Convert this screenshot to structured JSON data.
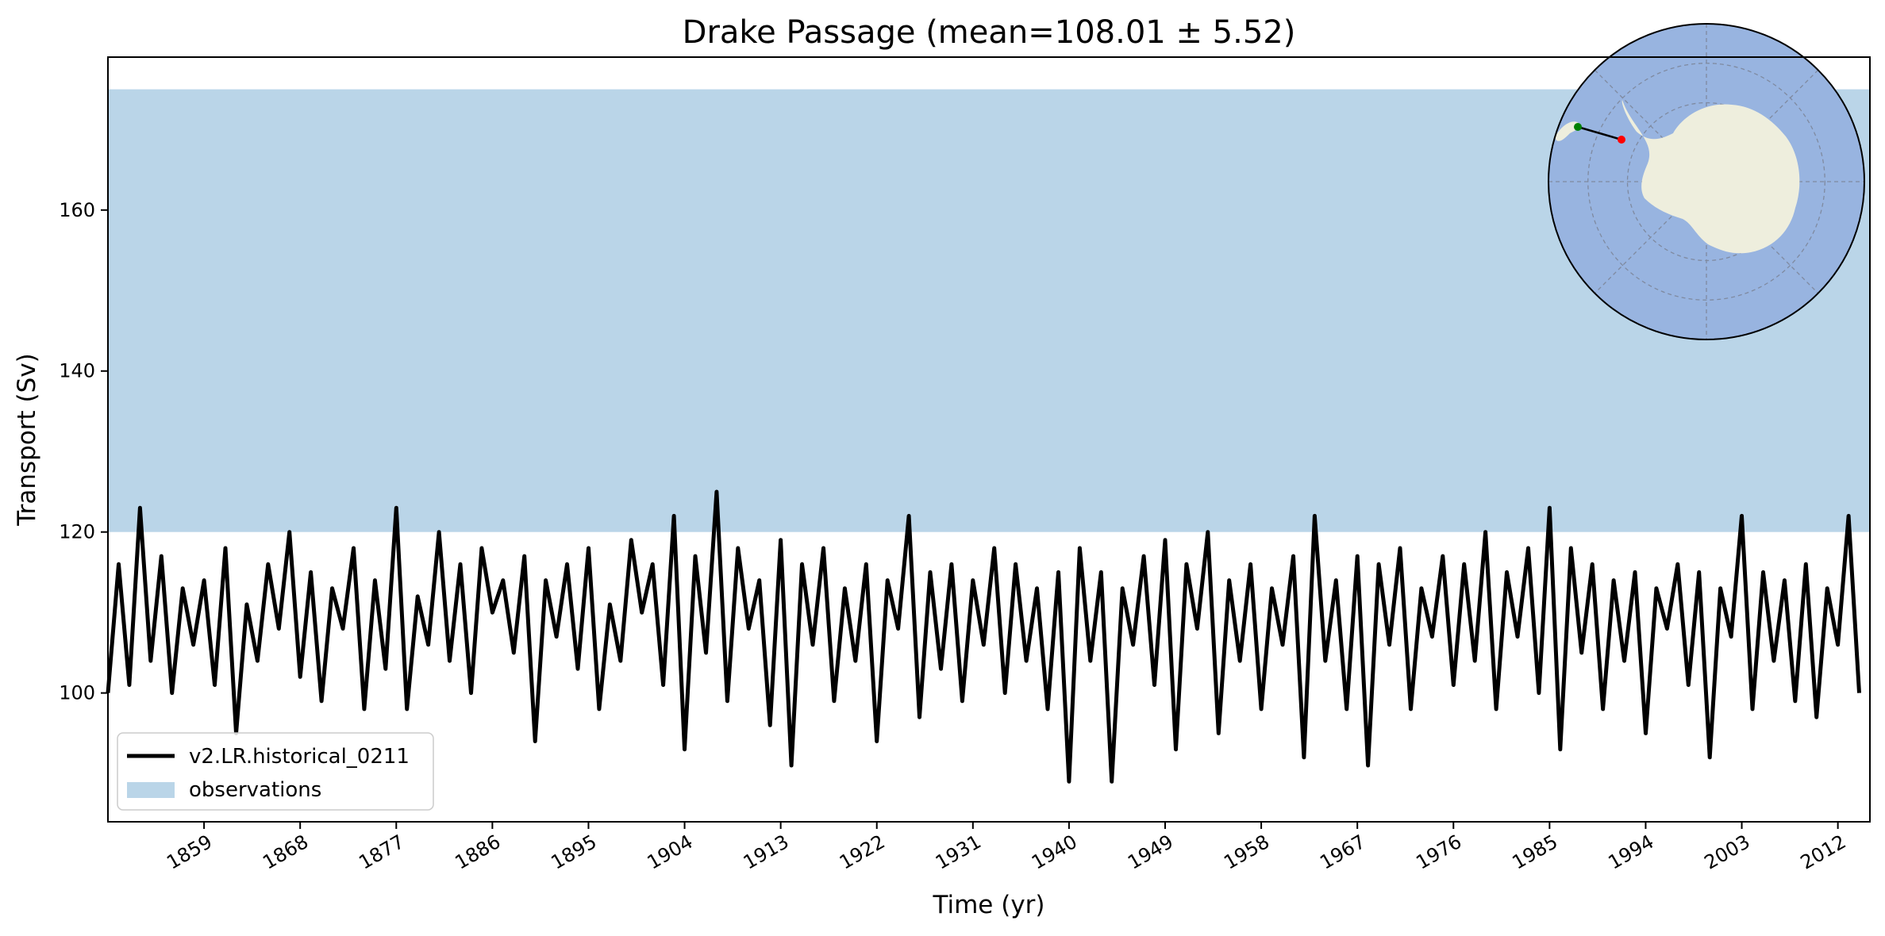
{
  "chart_data": {
    "type": "line",
    "title": "Drake Passage (mean=108.01 ± 5.52)",
    "xlabel": "Time (yr)",
    "ylabel": "Transport (Sv)",
    "xlim": [
      1850,
      2015
    ],
    "ylim": [
      84,
      179
    ],
    "xticks": [
      1859,
      1868,
      1877,
      1886,
      1895,
      1904,
      1913,
      1922,
      1931,
      1940,
      1949,
      1958,
      1967,
      1976,
      1985,
      1994,
      2003,
      2012
    ],
    "yticks": [
      100,
      120,
      140,
      160
    ],
    "grid": false,
    "legend_position": "lower-left",
    "series": [
      {
        "name": "v2.LR.historical_0211",
        "color": "#000000",
        "x": [
          1850,
          1851,
          1852,
          1853,
          1854,
          1855,
          1856,
          1857,
          1858,
          1859,
          1860,
          1861,
          1862,
          1863,
          1864,
          1865,
          1866,
          1867,
          1868,
          1869,
          1870,
          1871,
          1872,
          1873,
          1874,
          1875,
          1876,
          1877,
          1878,
          1879,
          1880,
          1881,
          1882,
          1883,
          1884,
          1885,
          1886,
          1887,
          1888,
          1889,
          1890,
          1891,
          1892,
          1893,
          1894,
          1895,
          1896,
          1897,
          1898,
          1899,
          1900,
          1901,
          1902,
          1903,
          1904,
          1905,
          1906,
          1907,
          1908,
          1909,
          1910,
          1911,
          1912,
          1913,
          1914,
          1915,
          1916,
          1917,
          1918,
          1919,
          1920,
          1921,
          1922,
          1923,
          1924,
          1925,
          1926,
          1927,
          1928,
          1929,
          1930,
          1931,
          1932,
          1933,
          1934,
          1935,
          1936,
          1937,
          1938,
          1939,
          1940,
          1941,
          1942,
          1943,
          1944,
          1945,
          1946,
          1947,
          1948,
          1949,
          1950,
          1951,
          1952,
          1953,
          1954,
          1955,
          1956,
          1957,
          1958,
          1959,
          1960,
          1961,
          1962,
          1963,
          1964,
          1965,
          1966,
          1967,
          1968,
          1969,
          1970,
          1971,
          1972,
          1973,
          1974,
          1975,
          1976,
          1977,
          1978,
          1979,
          1980,
          1981,
          1982,
          1983,
          1984,
          1985,
          1986,
          1987,
          1988,
          1989,
          1990,
          1991,
          1992,
          1993,
          1994,
          1995,
          1996,
          1997,
          1998,
          1999,
          2000,
          2001,
          2002,
          2003,
          2004,
          2005,
          2006,
          2007,
          2008,
          2009,
          2010,
          2011,
          2012,
          2013,
          2014
        ],
        "values": [
          100,
          116,
          101,
          123,
          104,
          117,
          100,
          113,
          106,
          114,
          101,
          118,
          95,
          111,
          104,
          116,
          108,
          120,
          102,
          115,
          99,
          113,
          108,
          118,
          98,
          114,
          103,
          123,
          98,
          112,
          106,
          120,
          104,
          116,
          100,
          118,
          110,
          114,
          105,
          117,
          94,
          114,
          107,
          116,
          103,
          118,
          98,
          111,
          104,
          119,
          110,
          116,
          101,
          122,
          93,
          117,
          105,
          125,
          99,
          118,
          108,
          114,
          96,
          119,
          91,
          116,
          106,
          118,
          99,
          113,
          104,
          116,
          94,
          114,
          108,
          122,
          97,
          115,
          103,
          116,
          99,
          114,
          106,
          118,
          100,
          116,
          104,
          113,
          98,
          115,
          89,
          118,
          104,
          115,
          89,
          113,
          106,
          117,
          101,
          119,
          93,
          116,
          108,
          120,
          95,
          114,
          104,
          116,
          98,
          113,
          106,
          117,
          92,
          122,
          104,
          114,
          98,
          117,
          91,
          116,
          106,
          118,
          98,
          113,
          107,
          117,
          101,
          116,
          104,
          120,
          98,
          115,
          107,
          118,
          100,
          123,
          93,
          118,
          105,
          116,
          98,
          114,
          104,
          115,
          95,
          113,
          108,
          116,
          101,
          115,
          92,
          113,
          107,
          122,
          98,
          115,
          104,
          114,
          99,
          116,
          97,
          113,
          106,
          122,
          100
        ]
      }
    ],
    "bands": [
      {
        "name": "observations",
        "color": "#bad5e8",
        "ymin": 120,
        "ymax": 175
      }
    ],
    "inset_map": {
      "projection": "south-polar-stereographic",
      "ocean_color": "#98b4e0",
      "land_color": "#eeeedd",
      "section_start_color": "#008000",
      "section_end_color": "#ff0000"
    }
  }
}
